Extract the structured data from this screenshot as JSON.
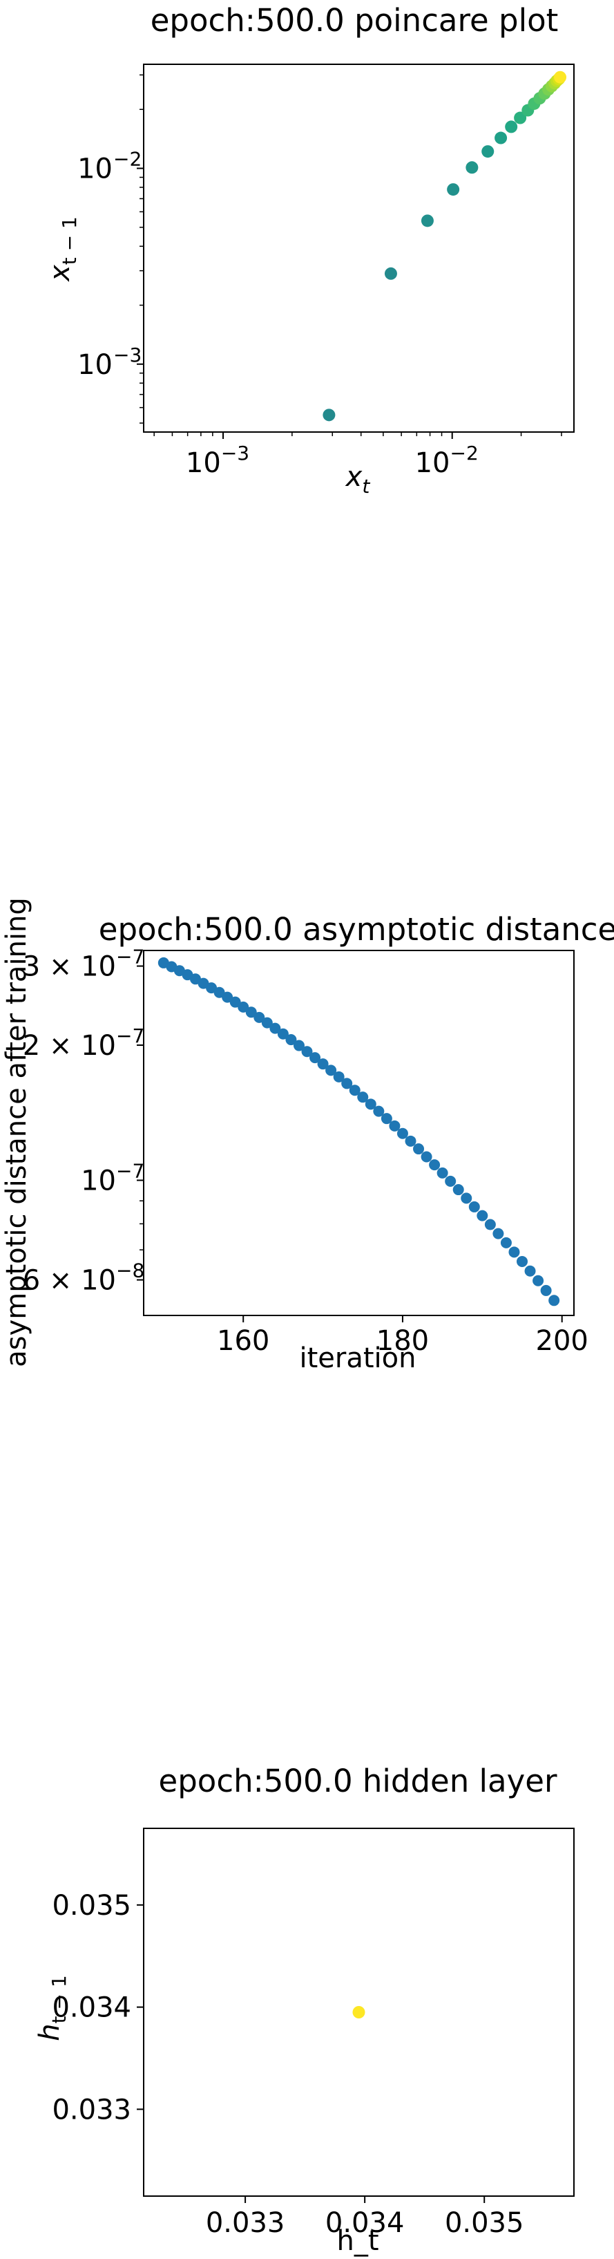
{
  "chart_data": [
    {
      "type": "scatter",
      "title": "epoch:500.0 poincare plot",
      "xlabel_base": "x",
      "xlabel_sub": "t",
      "ylabel_base": "x",
      "ylabel_sub": "t − 1",
      "xscale": "log",
      "yscale": "log",
      "xlim": [
        0.00045,
        0.034
      ],
      "ylim": [
        0.00045,
        0.034
      ],
      "xticks": [
        {
          "base": "10",
          "exp": "−3",
          "value": 0.001
        },
        {
          "base": "10",
          "exp": "−2",
          "value": 0.01
        }
      ],
      "yticks": [
        {
          "base": "10",
          "exp": "−3",
          "value": 0.001
        },
        {
          "base": "10",
          "exp": "−2",
          "value": 0.01
        }
      ],
      "colormap": "viridis",
      "grid": false,
      "x": [
        0.0029,
        0.0054,
        0.0078,
        0.0101,
        0.0122,
        0.0143,
        0.0163,
        0.0181,
        0.0198,
        0.0214,
        0.0228,
        0.0241,
        0.0253,
        0.0263,
        0.0272,
        0.028,
        0.0286,
        0.0292,
        0.0296
      ],
      "y": [
        0.00055,
        0.0029,
        0.0054,
        0.0078,
        0.0101,
        0.0122,
        0.0143,
        0.0163,
        0.0181,
        0.0198,
        0.0214,
        0.0228,
        0.0241,
        0.0253,
        0.0263,
        0.0272,
        0.028,
        0.0286,
        0.0292
      ],
      "colors": [
        "#238a8d",
        "#238a8d",
        "#22908d",
        "#21918c",
        "#21968b",
        "#1f9a8a",
        "#1fa088",
        "#22a785",
        "#2ab07f",
        "#35b779",
        "#44bf70",
        "#52c569",
        "#65cb5e",
        "#7ad151",
        "#90d743",
        "#a8db34",
        "#c0df25",
        "#d8e219",
        "#fde725"
      ]
    },
    {
      "type": "scatter",
      "title": "epoch:500.0 asymptotic distance",
      "xlabel": "iteration",
      "ylabel": "asymptotic distance after training",
      "yscale": "log",
      "xlim": [
        147.5,
        201.5
      ],
      "ylim": [
        5e-08,
        3.25e-07
      ],
      "xticks": [
        {
          "label": "160",
          "value": 160
        },
        {
          "label": "180",
          "value": 180
        },
        {
          "label": "200",
          "value": 200
        }
      ],
      "yticks": [
        {
          "mant": "3 × 10",
          "exp": "−7",
          "value": 3e-07
        },
        {
          "mant": "2 × 10",
          "exp": "−7",
          "value": 2e-07
        },
        {
          "mant": "10",
          "exp": "−7",
          "value": 1e-07
        },
        {
          "mant": "6 × 10",
          "exp": "−8",
          "value": 6e-08
        }
      ],
      "color": "#1f77b4",
      "grid": false,
      "x_start": 150,
      "x_end": 199,
      "y_start": 3.05e-07,
      "y_end": 5.4e-08
    },
    {
      "type": "scatter",
      "title": "epoch:500.0 hidden layer",
      "xlabel": "h_t",
      "ylabel_base": "h",
      "ylabel_sub": "t − 1",
      "xlim": [
        0.03215,
        0.03575
      ],
      "ylim": [
        0.03215,
        0.03575
      ],
      "xticks": [
        {
          "label": "0.033",
          "value": 0.033
        },
        {
          "label": "0.034",
          "value": 0.034
        },
        {
          "label": "0.035",
          "value": 0.035
        }
      ],
      "yticks": [
        {
          "label": "0.033",
          "value": 0.033
        },
        {
          "label": "0.034",
          "value": 0.034
        },
        {
          "label": "0.035",
          "value": 0.035
        }
      ],
      "color": "#fde725",
      "grid": false,
      "x": [
        0.03395
      ],
      "y": [
        0.03395
      ]
    }
  ]
}
